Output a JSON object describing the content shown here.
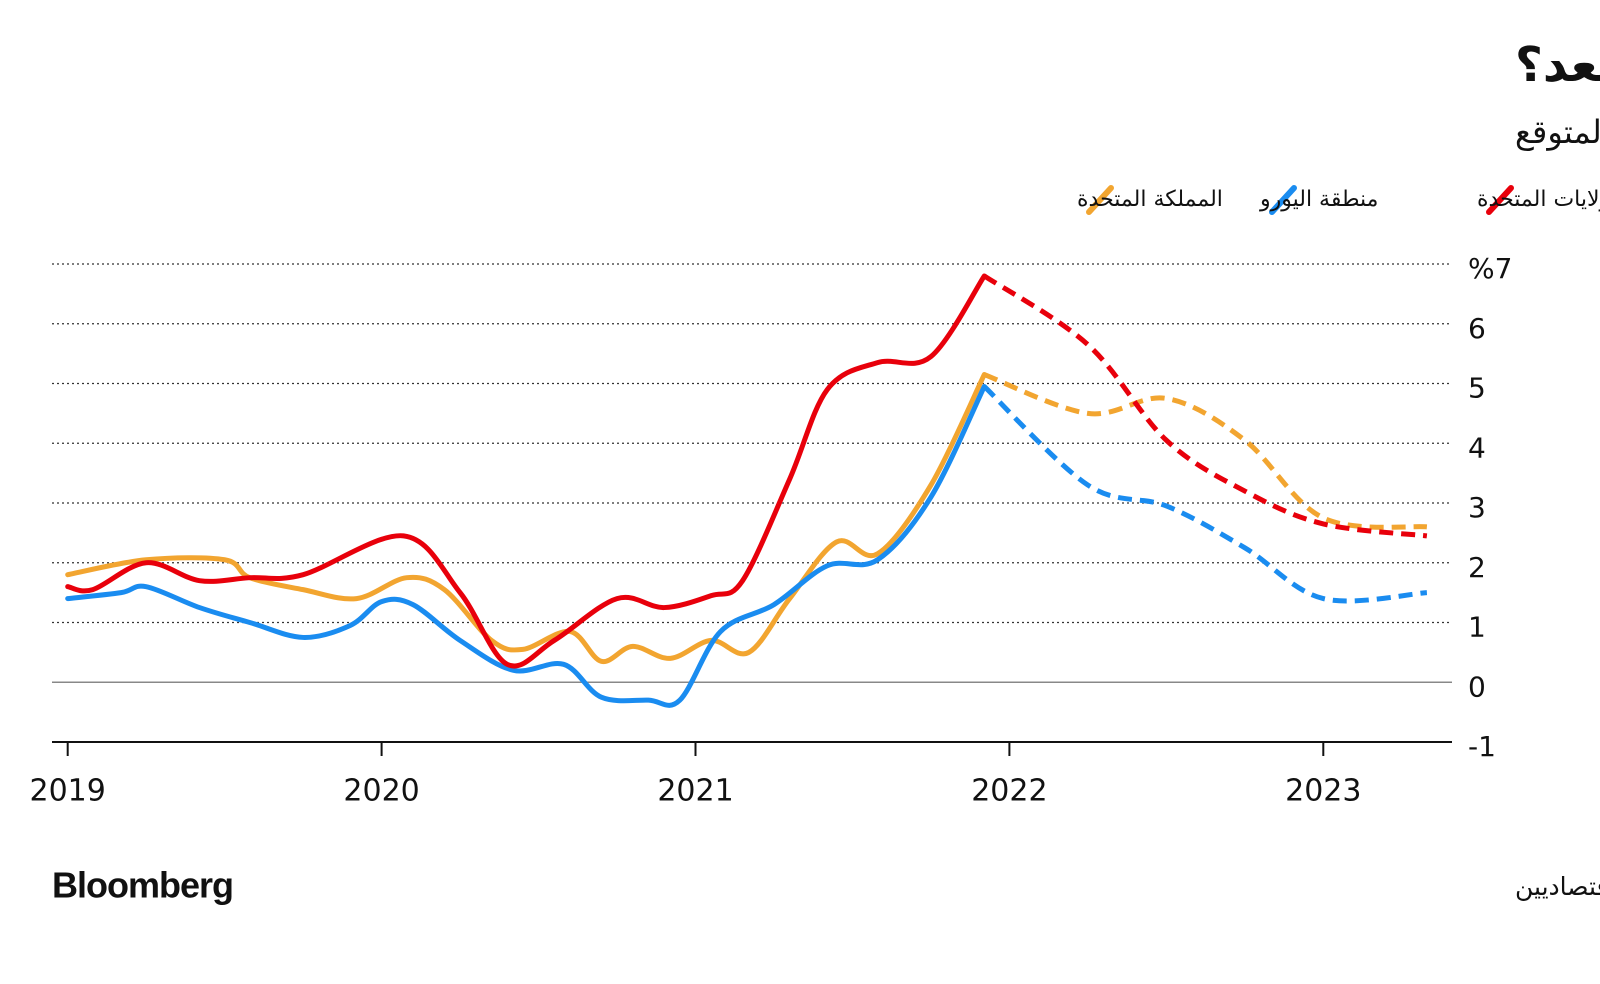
{
  "chart_data": {
    "type": "line",
    "title": "لم يتلاش بعد؟",
    "subtitle": "تضخم أسعار المستهلك الفعلي والمتوقع",
    "source": "المصدر: بيانات رسمية / استطلاعات بلومبرغ لآراء الاقتصاديين",
    "brand": "Bloomberg",
    "forecast_start": 2021.92,
    "xlim": [
      2018.95,
      2023.41
    ],
    "xticks": [
      2019,
      2020,
      2021,
      2022,
      2023
    ],
    "ylim": [
      -1,
      7
    ],
    "yticks": [
      -1,
      0,
      1,
      2,
      3,
      4,
      5,
      6,
      {
        "value": 7,
        "label": "%7"
      }
    ],
    "grid": true,
    "series": [
      {
        "name": "الولايات المتحدة",
        "color": "#e8000b",
        "x": [
          2019.0,
          2019.08,
          2019.25,
          2019.42,
          2019.58,
          2019.75,
          2020.07,
          2020.25,
          2020.4,
          2020.55,
          2020.75,
          2020.9,
          2021.05,
          2021.15,
          2021.3,
          2021.42,
          2021.58,
          2021.75,
          2021.92,
          2022.25,
          2022.5,
          2022.75,
          2023.0,
          2023.33
        ],
        "values": [
          1.6,
          1.55,
          2.0,
          1.7,
          1.75,
          1.8,
          2.45,
          1.5,
          0.3,
          0.7,
          1.4,
          1.25,
          1.45,
          1.7,
          3.4,
          4.9,
          5.35,
          5.45,
          6.8,
          5.65,
          4.05,
          3.2,
          2.65,
          2.45
        ]
      },
      {
        "name": "منطقة اليورو",
        "color": "#1a8cf0",
        "x": [
          2019.0,
          2019.17,
          2019.25,
          2019.42,
          2019.58,
          2019.75,
          2019.9,
          2020.0,
          2020.1,
          2020.25,
          2020.42,
          2020.58,
          2020.7,
          2020.85,
          2020.95,
          2021.08,
          2021.25,
          2021.42,
          2021.58,
          2021.75,
          2021.92,
          2022.25,
          2022.5,
          2022.75,
          2023.0,
          2023.33
        ],
        "values": [
          1.4,
          1.5,
          1.6,
          1.25,
          1.0,
          0.75,
          0.95,
          1.35,
          1.3,
          0.7,
          0.2,
          0.3,
          -0.25,
          -0.3,
          -0.3,
          0.85,
          1.3,
          1.95,
          2.05,
          3.1,
          4.95,
          3.3,
          2.95,
          2.25,
          1.4,
          1.5
        ]
      },
      {
        "name": "المملكة المتحدة",
        "color": "#f2a530",
        "x": [
          2019.0,
          2019.25,
          2019.5,
          2019.58,
          2019.75,
          2019.92,
          2020.08,
          2020.2,
          2020.35,
          2020.45,
          2020.6,
          2020.7,
          2020.8,
          2020.92,
          2021.05,
          2021.17,
          2021.3,
          2021.45,
          2021.58,
          2021.75,
          2021.92,
          2022.25,
          2022.5,
          2022.75,
          2023.0,
          2023.33
        ],
        "values": [
          1.8,
          2.05,
          2.05,
          1.75,
          1.55,
          1.4,
          1.75,
          1.55,
          0.7,
          0.55,
          0.85,
          0.35,
          0.6,
          0.4,
          0.7,
          0.5,
          1.4,
          2.35,
          2.15,
          3.3,
          5.15,
          4.5,
          4.75,
          4.05,
          2.75,
          2.6
        ]
      }
    ]
  }
}
